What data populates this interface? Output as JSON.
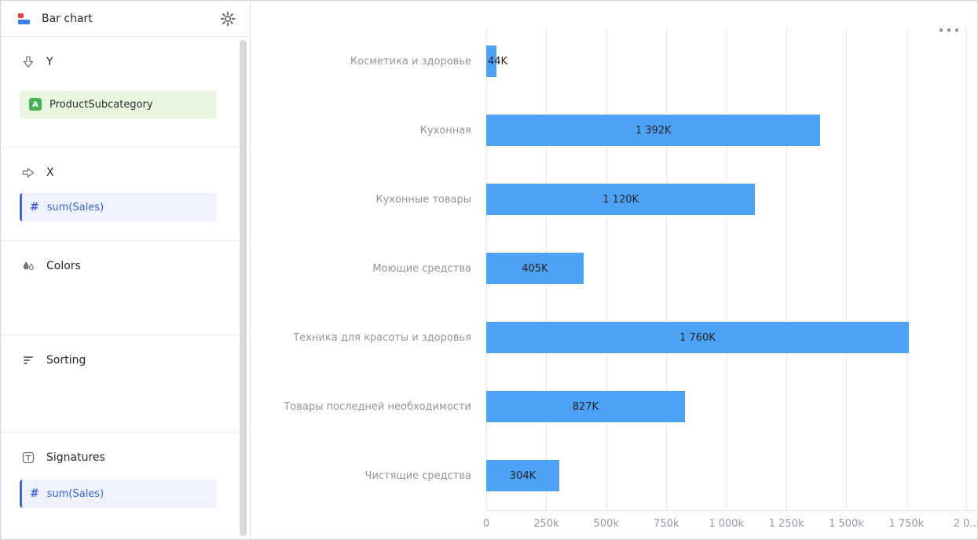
{
  "sidebar": {
    "title": "Bar chart",
    "sections": [
      {
        "label": "Y",
        "fields": [
          {
            "name": "ProductSubcategory",
            "type": "dimension",
            "icon": "A"
          }
        ]
      },
      {
        "label": "X",
        "fields": [
          {
            "name": "sum(Sales)",
            "type": "measure",
            "icon": "#"
          }
        ]
      },
      {
        "label": "Colors",
        "fields": []
      },
      {
        "label": "Sorting",
        "fields": []
      },
      {
        "label": "Signatures",
        "fields": [
          {
            "name": "sum(Sales)",
            "type": "measure",
            "icon": "#"
          }
        ]
      }
    ]
  },
  "chart": {
    "more_icon": "···"
  },
  "chart_data": {
    "type": "bar",
    "orientation": "horizontal",
    "title": "",
    "series_name": "sum(Sales)",
    "categories": [
      "Косметика и здоровье",
      "Кухонная",
      "Кухонные товары",
      "Моющие средства",
      "Техника для красоты и здоровья",
      "Товары последней необходимости",
      "Чистящие средства"
    ],
    "values": [
      44,
      1392,
      1120,
      405,
      1760,
      827,
      304
    ],
    "value_labels": [
      "44K",
      "1 392K",
      "1 120K",
      "405K",
      "1 760K",
      "827K",
      "304K"
    ],
    "units": "k",
    "xlim": [
      0,
      2045
    ],
    "xticks": [
      {
        "value": 0,
        "label": "0"
      },
      {
        "value": 250,
        "label": "250k"
      },
      {
        "value": 500,
        "label": "500k"
      },
      {
        "value": 750,
        "label": "750k"
      },
      {
        "value": 1000,
        "label": "1 000k"
      },
      {
        "value": 1250,
        "label": "1 250k"
      },
      {
        "value": 1500,
        "label": "1 500k"
      },
      {
        "value": 1750,
        "label": "1 750k"
      },
      {
        "value": 2000,
        "label": "2 0..."
      }
    ],
    "grid": true,
    "legend": false,
    "bar_color": "#4DA2F6"
  },
  "colors": {
    "bar": "#4DA2F6",
    "measure_accent": "#3D63D4",
    "dimension_green": "#48B058",
    "category_label": "#8F949B"
  }
}
